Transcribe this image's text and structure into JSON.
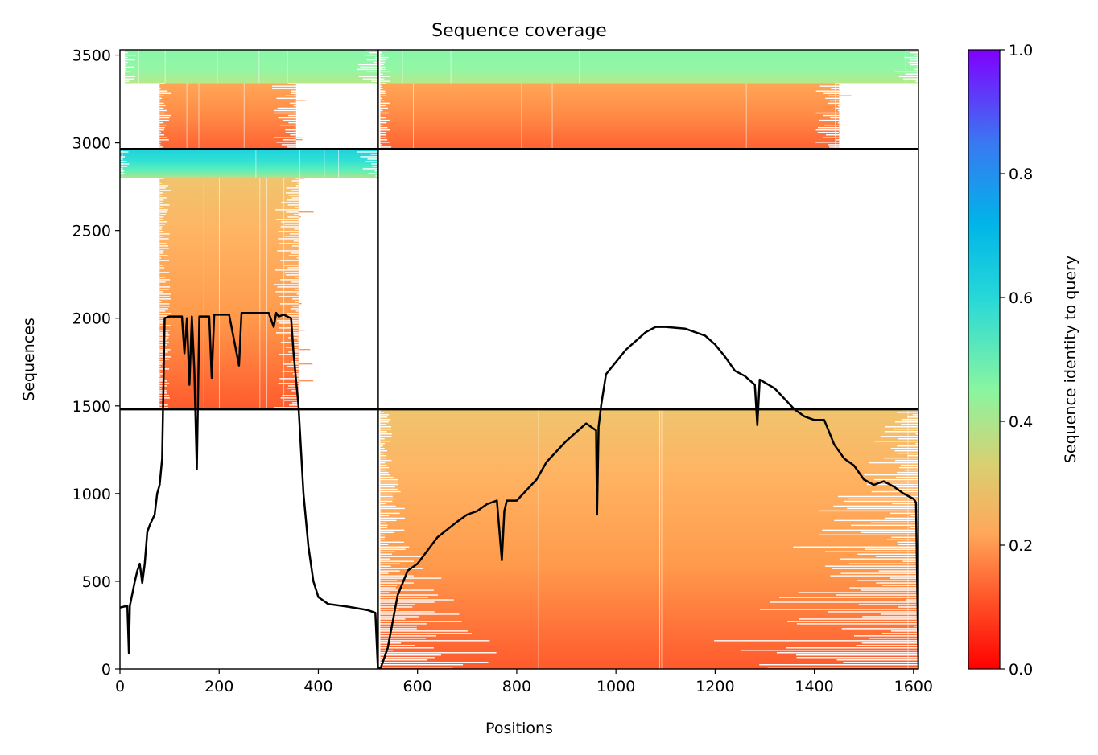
{
  "chart_data": {
    "type": "heatmap",
    "title": "Sequence coverage",
    "xlabel": "Positions",
    "ylabel": "Sequences",
    "xlim": [
      0,
      1610
    ],
    "ylim": [
      0,
      3530
    ],
    "xticks": [
      0,
      200,
      400,
      600,
      800,
      1000,
      1200,
      1400,
      1600
    ],
    "yticks": [
      0,
      500,
      1000,
      1500,
      2000,
      2500,
      3000,
      3500
    ],
    "colorbar": {
      "label": "Sequence identity to query",
      "ticks": [
        "0.0",
        "0.2",
        "0.4",
        "0.6",
        "0.8",
        "1.0"
      ],
      "range": [
        0,
        1
      ],
      "colormap": "rainbow_r"
    },
    "divider_positions": [
      520
    ],
    "divider_sequences": [
      1480,
      2965
    ],
    "blocks": [
      {
        "x": [
          0,
          520
        ],
        "y": [
          3340,
          3530
        ],
        "identity": 0.45,
        "filled": [
          10,
          520
        ]
      },
      {
        "x": [
          0,
          520
        ],
        "y": [
          2965,
          3340
        ],
        "identity": 0.17,
        "filled": [
          80,
          355
        ]
      },
      {
        "x": [
          520,
          1610
        ],
        "y": [
          3340,
          3530
        ],
        "identity": 0.45,
        "filled": [
          525,
          1610
        ]
      },
      {
        "x": [
          520,
          1610
        ],
        "y": [
          2965,
          3340
        ],
        "identity": 0.17,
        "filled": [
          525,
          1450
        ]
      },
      {
        "x": [
          0,
          520
        ],
        "y": [
          2800,
          2965
        ],
        "identity": 0.62,
        "filled": [
          0,
          520
        ]
      },
      {
        "x": [
          0,
          520
        ],
        "y": [
          1480,
          2800
        ],
        "identity": 0.2,
        "filled": [
          80,
          360
        ]
      },
      {
        "x": [
          520,
          1610
        ],
        "y": [
          0,
          1480
        ],
        "identity": 0.22,
        "filled": [
          525,
          1610
        ]
      }
    ],
    "coverage_line": {
      "x": [
        0,
        15,
        18,
        20,
        25,
        30,
        35,
        40,
        45,
        50,
        55,
        60,
        70,
        75,
        80,
        85,
        90,
        100,
        125,
        130,
        135,
        140,
        145,
        150,
        155,
        160,
        180,
        185,
        190,
        200,
        220,
        240,
        245,
        250,
        270,
        300,
        310,
        315,
        320,
        330,
        345,
        350,
        355,
        360,
        370,
        380,
        390,
        400,
        420,
        460,
        500,
        515,
        520,
        525,
        540,
        560,
        580,
        600,
        640,
        680,
        700,
        720,
        740,
        760,
        770,
        775,
        780,
        800,
        820,
        840,
        860,
        900,
        940,
        960,
        962,
        965,
        970,
        980,
        1000,
        1020,
        1040,
        1060,
        1080,
        1100,
        1140,
        1180,
        1200,
        1220,
        1240,
        1260,
        1280,
        1285,
        1290,
        1320,
        1360,
        1380,
        1400,
        1420,
        1440,
        1460,
        1480,
        1500,
        1520,
        1540,
        1560,
        1580,
        1600,
        1605,
        1610
      ],
      "y": [
        350,
        360,
        90,
        360,
        430,
        500,
        560,
        600,
        490,
        600,
        780,
        820,
        880,
        1000,
        1050,
        1200,
        2000,
        2010,
        2010,
        1800,
        2000,
        1620,
        2010,
        1700,
        1140,
        2010,
        2010,
        1660,
        2020,
        2020,
        2020,
        1730,
        2030,
        2030,
        2030,
        2030,
        1950,
        2030,
        2010,
        2020,
        2000,
        1800,
        1650,
        1500,
        1000,
        700,
        500,
        410,
        370,
        355,
        335,
        320,
        10,
        0,
        120,
        420,
        560,
        600,
        750,
        840,
        880,
        900,
        940,
        960,
        620,
        900,
        960,
        960,
        1020,
        1080,
        1180,
        1300,
        1400,
        1360,
        880,
        1380,
        1500,
        1680,
        1750,
        1820,
        1870,
        1920,
        1950,
        1950,
        1940,
        1900,
        1850,
        1780,
        1700,
        1670,
        1620,
        1390,
        1650,
        1600,
        1480,
        1440,
        1420,
        1420,
        1280,
        1200,
        1160,
        1080,
        1050,
        1070,
        1040,
        1000,
        970,
        950,
        0
      ]
    }
  }
}
